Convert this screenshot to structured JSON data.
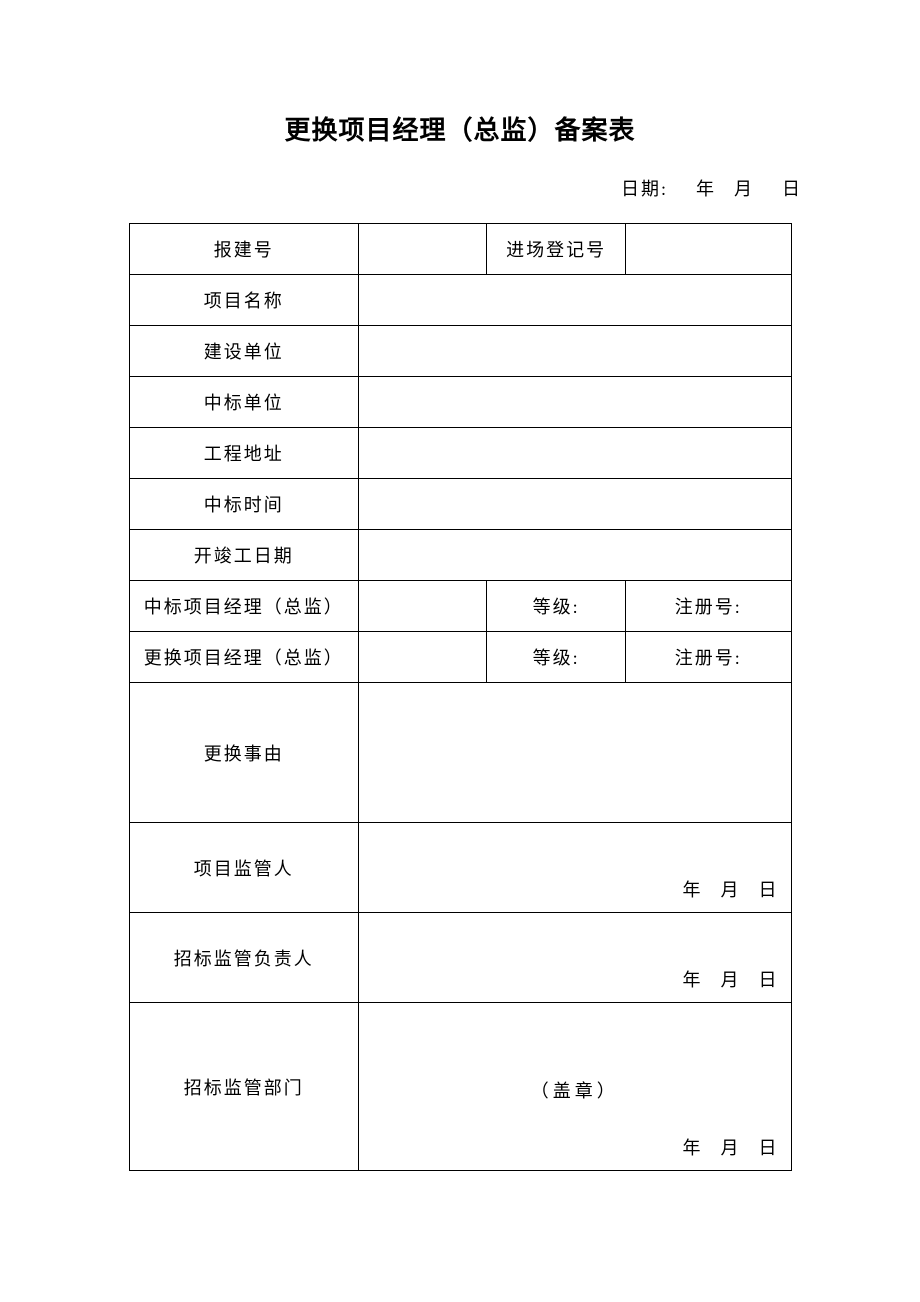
{
  "title": "更换项目经理（总监）备案表",
  "header_date": {
    "label": "日期:",
    "year": "年",
    "month": "月",
    "day": "日"
  },
  "rows": {
    "report_no": {
      "label": "报建号",
      "value": ""
    },
    "entry_no": {
      "label": "进场登记号",
      "value": ""
    },
    "project_name": {
      "label": "项目名称",
      "value": ""
    },
    "construction_unit": {
      "label": "建设单位",
      "value": ""
    },
    "bid_unit": {
      "label": "中标单位",
      "value": ""
    },
    "project_address": {
      "label": "工程地址",
      "value": ""
    },
    "bid_time": {
      "label": "中标时间",
      "value": ""
    },
    "start_end_date": {
      "label": "开竣工日期",
      "value": ""
    },
    "bid_pm": {
      "label": "中标项目经理（总监）",
      "name": "",
      "grade_label": "等级:",
      "grade": "",
      "regno_label": "注册号:",
      "regno": ""
    },
    "replace_pm": {
      "label": "更换项目经理（总监）",
      "name": "",
      "grade_label": "等级:",
      "grade": "",
      "regno_label": "注册号:",
      "regno": ""
    },
    "replace_reason": {
      "label": "更换事由",
      "value": ""
    },
    "supervisor": {
      "label": "项目监管人"
    },
    "bid_supervisor_head": {
      "label": "招标监管负责人"
    },
    "bid_supervisor_dept": {
      "label": "招标监管部门",
      "seal": "（盖章）"
    }
  },
  "sig_date": {
    "year": "年",
    "month": "月",
    "day": "日"
  },
  "style": {
    "page_bg": "#ffffff",
    "text_color": "#000000",
    "border_color": "#000000",
    "title_fontsize": 26,
    "body_fontsize": 18
  }
}
